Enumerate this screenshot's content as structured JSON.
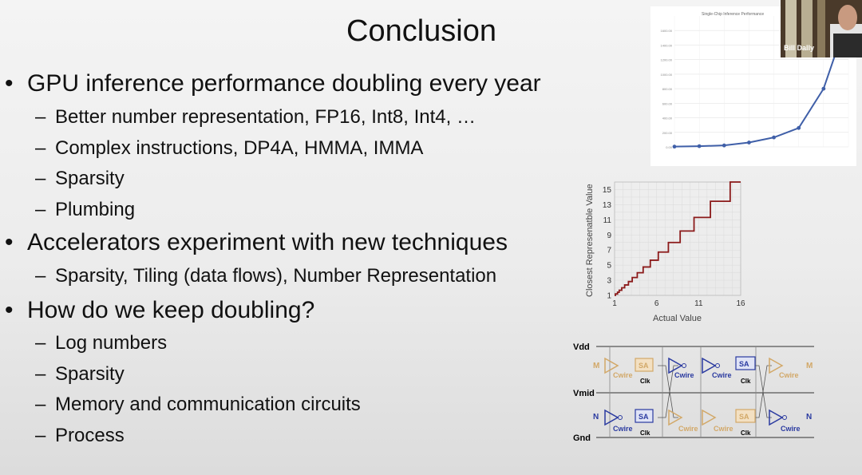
{
  "slide": {
    "title": "Conclusion",
    "bullets": [
      {
        "text": "GPU inference performance doubling every year",
        "subs": [
          "Better number representation, FP16, Int8, Int4, …",
          "Complex instructions, DP4A, HMMA, IMMA",
          "Sparsity",
          "Plumbing"
        ]
      },
      {
        "text": "Accelerators experiment with new techniques",
        "subs": [
          "Sparsity, Tiling (data flows), Number Representation"
        ]
      },
      {
        "text": "How do we keep doubling?",
        "subs": [
          "Log numbers",
          "Sparsity",
          "Memory and communication circuits",
          "Process"
        ]
      }
    ]
  },
  "video": {
    "speaker_name": "Bill Dally"
  },
  "chart_data": [
    {
      "type": "line",
      "title": "Single-Chip Inference Performance",
      "x": [
        0,
        1,
        2,
        3,
        4,
        5,
        6,
        7
      ],
      "values": [
        4,
        10,
        20,
        60,
        130,
        260,
        800,
        1800
      ],
      "ylim": [
        0,
        1800
      ],
      "y_ticks": [
        "0.00",
        "200.00",
        "400.00",
        "600.00",
        "800.00",
        "1000.00",
        "1200.00",
        "1400.00",
        "1600.00"
      ],
      "series_color": "#3f5fa8"
    },
    {
      "type": "line",
      "xlabel": "Actual Value",
      "ylabel": "Closest Represenatble Value",
      "x_ticks": [
        1,
        6,
        11,
        16
      ],
      "y_ticks": [
        1,
        3,
        5,
        7,
        9,
        11,
        13,
        15
      ],
      "xlim": [
        1,
        16
      ],
      "ylim": [
        1,
        16
      ],
      "log_base_step": 4,
      "series_color": "#8b1a1a"
    }
  ],
  "circuit": {
    "rail_labels": [
      "Vdd",
      "Vmid",
      "Gnd"
    ],
    "signal_labels": {
      "m": "M",
      "n": "N"
    },
    "cell_labels": {
      "sense_amp": "SA",
      "wire_cap": "Cwire",
      "clock": "Clk"
    },
    "colors": {
      "blue": "#2a3aa0",
      "orange": "#d2a868",
      "rail": "#555555"
    }
  }
}
